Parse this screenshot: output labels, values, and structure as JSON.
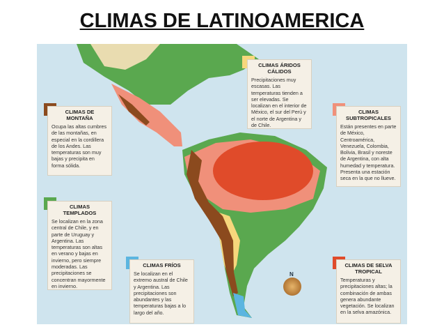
{
  "title": "CLIMAS DE LATINOAMERICA",
  "legend": [
    {
      "title": "CLIMAS ÁRIDOS CÁLIDOS",
      "text": "Precipitaciones muy escasas. Las temperaturas tienden a ser elevadas. Se localizan en el interior de México, el sur del Perú y el norte de Argentina y de Chile."
    },
    {
      "title": "CLIMAS DE MONTAÑA",
      "text": "Ocupa las altas cumbres de las montañas, en especial en la cordillera de los Andes. Las temperaturas son muy bajas y precipita en forma sólida."
    },
    {
      "title": "CLIMAS SUBTROPICALES",
      "text": "Están presentes en parte de México, Centroamérica, Venezuela, Colombia, Bolivia, Brasil y noreste de Argentina, con alta humedad y temperatura. Presenta una estación seca en la que no llueve."
    },
    {
      "title": "CLIMAS TEMPLADOS",
      "text": "Se localizan en la zona central de Chile, y en parte de Uruguay y Argentina. Las temperaturas son altas en verano y bajas en invierno, pero siempre moderadas. Las precipitaciones se concentran mayormente en invierno."
    },
    {
      "title": "CLIMAS FRÍOS",
      "text": "Se localizan en el extremo austral de Chile y Argentina. Las precipitaciones son abundantes y las temperaturas bajas a lo largo del año."
    },
    {
      "title": "CLIMAS DE SELVA TROPICAL",
      "text": "Temperaturas y precipitaciones altas; la combinación de ambas genera abundante vegetación. Se localizan en la selva amazónica."
    }
  ],
  "compass": "N"
}
